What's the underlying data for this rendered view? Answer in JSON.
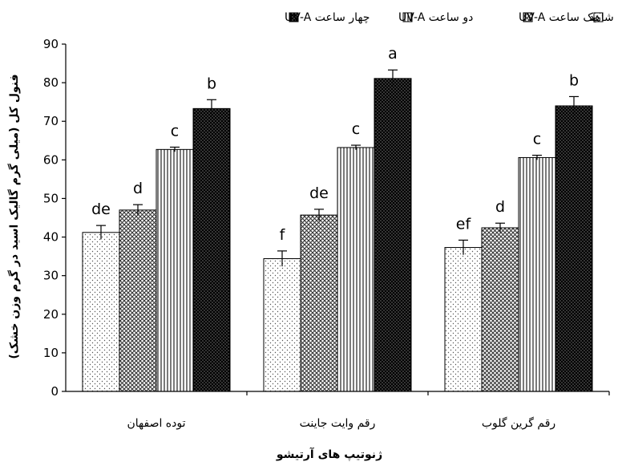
{
  "chart_data": {
    "type": "bar",
    "xlabel": "ژنوتیپ های آرتیشو",
    "ylabel": "فنول کل (میلی گرم گالیک اسید در گرم وزن خشک)",
    "ylim": [
      0,
      90
    ],
    "yticks": [
      0,
      10,
      20,
      30,
      40,
      50,
      60,
      70,
      80,
      90
    ],
    "grid": false,
    "legend_position": "top",
    "categories": [
      "توده اصفهان",
      "رقم وایت جاینت",
      "رقم گرین گلوب"
    ],
    "series": [
      {
        "name": "شاهد",
        "pattern": "dots",
        "values": [
          41.2,
          34.4,
          37.3
        ],
        "errors": [
          1.8,
          2.0,
          1.9
        ],
        "letters": [
          "de",
          "f",
          "ef"
        ]
      },
      {
        "name": "یک ساعت UV-A",
        "pattern": "crosshatch",
        "values": [
          47.0,
          45.7,
          42.4
        ],
        "errors": [
          1.4,
          1.5,
          1.2
        ],
        "letters": [
          "d",
          "de",
          "d"
        ]
      },
      {
        "name": "دو ساعت UV-A",
        "pattern": "vertical-lines",
        "values": [
          62.7,
          63.2,
          60.6
        ],
        "errors": [
          0.6,
          0.6,
          0.6
        ],
        "letters": [
          "c",
          "c",
          "c"
        ]
      },
      {
        "name": "چهار ساعت UV-A",
        "pattern": "dense-dark",
        "values": [
          73.3,
          81.1,
          74.0
        ],
        "errors": [
          2.3,
          2.2,
          2.4
        ],
        "letters": [
          "b",
          "a",
          "b"
        ]
      }
    ]
  }
}
